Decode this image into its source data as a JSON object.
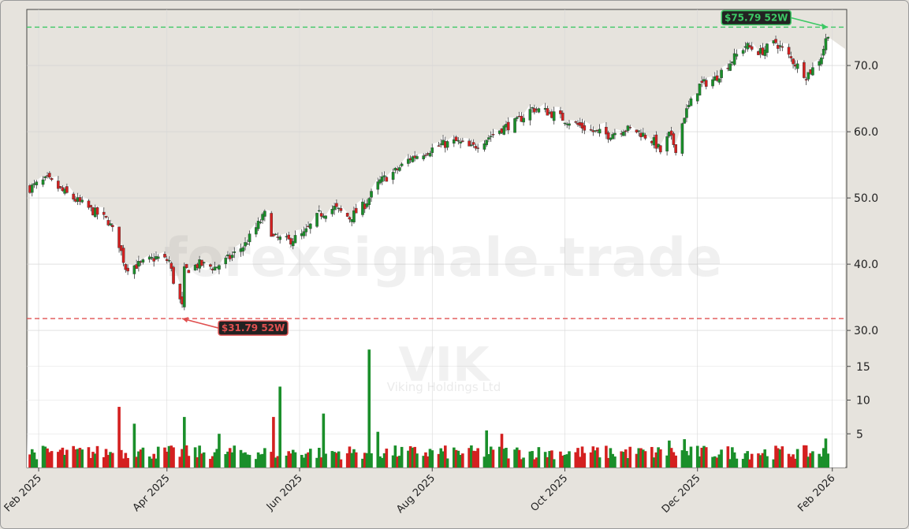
{
  "colors": {
    "up": "#1a8f2a",
    "down": "#d42020",
    "high_line": "#3cc864",
    "low_line": "#e05050",
    "panel_fill": "#e6e3dd",
    "plot_bg": "#ffffff"
  },
  "watermark": {
    "site": "forexsignale.trade",
    "ticker": "VIK",
    "company": "Viking Holdings Ltd"
  },
  "chart_data": {
    "type": "candlestick",
    "grid": true,
    "x_axis": {
      "range": [
        "2025-01-28",
        "2026-02-04"
      ],
      "ticks": [
        {
          "date": "2025-02-01",
          "label": "Feb 2025"
        },
        {
          "date": "2025-04-01",
          "label": "Apr 2025"
        },
        {
          "date": "2025-06-01",
          "label": "Jun 2025"
        },
        {
          "date": "2025-08-01",
          "label": "Aug 2025"
        },
        {
          "date": "2025-10-01",
          "label": "Oct 2025"
        },
        {
          "date": "2025-12-01",
          "label": "Dec 2025"
        },
        {
          "date": "2026-02-01",
          "label": "Feb 2026"
        }
      ]
    },
    "price_axis": {
      "position": "right",
      "range": [
        28,
        77
      ],
      "ticks": [
        "30.0",
        "40.0",
        "50.0",
        "60.0",
        "70.0"
      ]
    },
    "volume_axis": {
      "position": "right",
      "range": [
        0,
        19
      ],
      "ticks": [
        "5",
        "10",
        "15"
      ]
    },
    "annotations": [
      {
        "label": "$75.79 52W",
        "value": 75.79,
        "date": "2026-01-30",
        "kind": "high"
      },
      {
        "label": "$31.79 52W",
        "value": 31.79,
        "date": "2025-04-08",
        "kind": "low"
      }
    ],
    "price_anchors": [
      [
        "2025-01-28",
        51.5
      ],
      [
        "2025-02-05",
        52.8
      ],
      [
        "2025-02-12",
        51.0
      ],
      [
        "2025-02-19",
        49.5
      ],
      [
        "2025-02-26",
        48.0
      ],
      [
        "2025-03-05",
        46.5
      ],
      [
        "2025-03-10",
        43.0
      ],
      [
        "2025-03-13",
        39.5
      ],
      [
        "2025-03-20",
        40.0
      ],
      [
        "2025-03-27",
        41.0
      ],
      [
        "2025-04-02",
        40.5
      ],
      [
        "2025-04-04",
        37.5
      ],
      [
        "2025-04-08",
        33.5
      ],
      [
        "2025-04-09",
        39.0
      ],
      [
        "2025-04-16",
        40.0
      ],
      [
        "2025-04-23",
        39.5
      ],
      [
        "2025-04-30",
        41.0
      ],
      [
        "2025-05-07",
        43.0
      ],
      [
        "2025-05-13",
        46.0
      ],
      [
        "2025-05-16",
        47.5
      ],
      [
        "2025-05-20",
        44.0
      ],
      [
        "2025-05-27",
        43.5
      ],
      [
        "2025-06-03",
        44.5
      ],
      [
        "2025-06-10",
        47.5
      ],
      [
        "2025-06-17",
        48.5
      ],
      [
        "2025-06-24",
        47.0
      ],
      [
        "2025-07-01",
        49.0
      ],
      [
        "2025-07-08",
        52.5
      ],
      [
        "2025-07-15",
        54.0
      ],
      [
        "2025-07-22",
        56.0
      ],
      [
        "2025-07-29",
        57.0
      ],
      [
        "2025-08-05",
        58.0
      ],
      [
        "2025-08-12",
        58.5
      ],
      [
        "2025-08-19",
        57.5
      ],
      [
        "2025-08-26",
        59.0
      ],
      [
        "2025-09-02",
        60.5
      ],
      [
        "2025-09-09",
        61.5
      ],
      [
        "2025-09-16",
        63.5
      ],
      [
        "2025-09-23",
        63.0
      ],
      [
        "2025-09-30",
        62.0
      ],
      [
        "2025-10-07",
        61.0
      ],
      [
        "2025-10-14",
        60.0
      ],
      [
        "2025-10-21",
        59.5
      ],
      [
        "2025-10-28",
        60.5
      ],
      [
        "2025-11-04",
        60.0
      ],
      [
        "2025-11-11",
        58.5
      ],
      [
        "2025-11-14",
        57.0
      ],
      [
        "2025-11-18",
        59.5
      ],
      [
        "2025-11-21",
        57.5
      ],
      [
        "2025-11-25",
        62.5
      ],
      [
        "2025-12-02",
        67.0
      ],
      [
        "2025-12-09",
        68.0
      ],
      [
        "2025-12-16",
        70.5
      ],
      [
        "2025-12-23",
        73.0
      ],
      [
        "2025-12-30",
        72.0
      ],
      [
        "2026-01-06",
        73.5
      ],
      [
        "2026-01-13",
        71.0
      ],
      [
        "2026-01-20",
        68.5
      ],
      [
        "2026-01-23",
        69.5
      ],
      [
        "2026-01-27",
        71.5
      ],
      [
        "2026-01-30",
        75.0
      ]
    ],
    "volume_spikes": [
      [
        "2025-03-10",
        9.0
      ],
      [
        "2025-03-17",
        6.5
      ],
      [
        "2025-04-09",
        7.5
      ],
      [
        "2025-04-25",
        5.0
      ],
      [
        "2025-05-20",
        7.5
      ],
      [
        "2025-05-23",
        12.0
      ],
      [
        "2025-06-12",
        8.0
      ],
      [
        "2025-07-03",
        17.5
      ],
      [
        "2025-07-07",
        5.3
      ],
      [
        "2025-08-26",
        5.5
      ],
      [
        "2025-09-02",
        5.0
      ],
      [
        "2025-11-18",
        4.0
      ],
      [
        "2025-11-25",
        4.2
      ],
      [
        "2026-01-29",
        4.3
      ]
    ]
  }
}
